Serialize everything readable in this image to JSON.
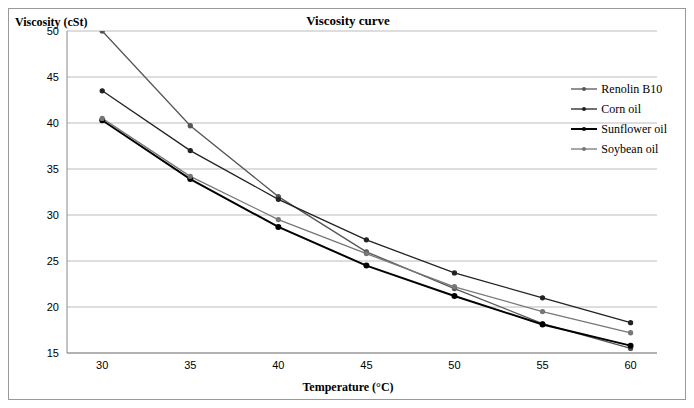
{
  "chart_data": {
    "type": "line",
    "title": "Viscosity curve",
    "x_label": "Temperature (°C)",
    "y_label": "Viscosity (cSt)",
    "x": [
      30,
      35,
      40,
      45,
      50,
      55,
      60
    ],
    "xlim": [
      28,
      61.5
    ],
    "xticks": [
      30,
      35,
      40,
      45,
      50,
      55,
      60
    ],
    "ylim": [
      15,
      50
    ],
    "yticks": [
      15,
      20,
      25,
      30,
      35,
      40,
      45,
      50
    ],
    "grid": true,
    "legend": "upper right",
    "series": [
      {
        "name": "Renolin B10",
        "color": "#555555",
        "marker": "circle",
        "values": [
          50,
          39.7,
          32,
          26,
          22,
          18.2,
          15.5
        ]
      },
      {
        "name": "Corn oil",
        "color": "#222222",
        "marker": "circle",
        "values": [
          43.5,
          37,
          31.7,
          27.3,
          23.7,
          21,
          18.3
        ]
      },
      {
        "name": "Sunflower oil",
        "color": "#000000",
        "marker": "circle",
        "values": [
          40.3,
          33.9,
          28.7,
          24.5,
          21.2,
          18.1,
          15.8
        ]
      },
      {
        "name": "Soybean oil",
        "color": "#777777",
        "marker": "circle",
        "values": [
          40.5,
          34.2,
          29.5,
          25.8,
          22.2,
          19.5,
          17.2
        ]
      }
    ]
  }
}
